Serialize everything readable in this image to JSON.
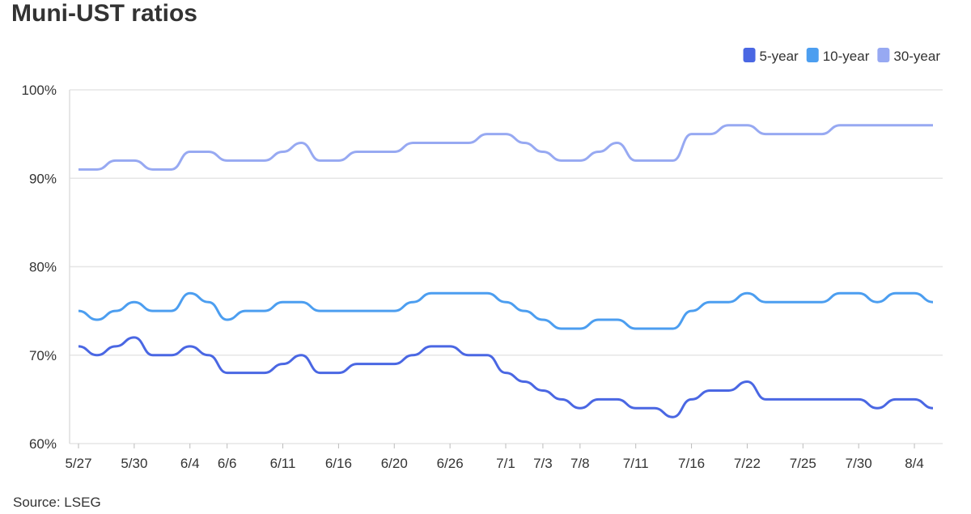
{
  "chart_data": {
    "type": "line",
    "title": "Muni-UST ratios",
    "source": "Source: LSEG",
    "categories": [
      "5/27",
      null,
      null,
      "5/30",
      null,
      null,
      "6/4",
      null,
      "6/6",
      null,
      null,
      "6/11",
      null,
      null,
      "6/16",
      null,
      null,
      "6/20",
      null,
      null,
      "6/26",
      null,
      null,
      "7/1",
      null,
      "7/3",
      null,
      "7/8",
      null,
      null,
      "7/11",
      null,
      null,
      "7/16",
      null,
      null,
      "7/22",
      null,
      null,
      "7/25",
      null,
      null,
      "7/30",
      null,
      null,
      "8/4",
      null
    ],
    "series": [
      {
        "name": "5-year",
        "color": "#4a67e3",
        "values": [
          71,
          70,
          71,
          72,
          70,
          70,
          71,
          70,
          68,
          68,
          68,
          69,
          70,
          68,
          68,
          69,
          69,
          69,
          70,
          71,
          71,
          70,
          70,
          68,
          67,
          66,
          65,
          64,
          65,
          65,
          64,
          64,
          63,
          65,
          66,
          66,
          67,
          65,
          65,
          65,
          65,
          65,
          65,
          64,
          65,
          65,
          64
        ]
      },
      {
        "name": "10-year",
        "color": "#4c9ef0",
        "values": [
          75,
          74,
          75,
          76,
          75,
          75,
          77,
          76,
          74,
          75,
          75,
          76,
          76,
          75,
          75,
          75,
          75,
          75,
          76,
          77,
          77,
          77,
          77,
          76,
          75,
          74,
          73,
          73,
          74,
          74,
          73,
          73,
          73,
          75,
          76,
          76,
          77,
          76,
          76,
          76,
          76,
          77,
          77,
          76,
          77,
          77,
          76
        ]
      },
      {
        "name": "30-year",
        "color": "#97a9f2",
        "values": [
          91,
          91,
          92,
          92,
          91,
          91,
          93,
          93,
          92,
          92,
          92,
          93,
          94,
          92,
          92,
          93,
          93,
          93,
          94,
          94,
          94,
          94,
          95,
          95,
          94,
          93,
          92,
          92,
          93,
          94,
          92,
          92,
          92,
          95,
          95,
          96,
          96,
          95,
          95,
          95,
          95,
          96,
          96,
          96,
          96,
          96,
          96
        ]
      }
    ],
    "ylim": [
      60,
      100
    ],
    "yticks": [
      {
        "value": 60,
        "label": "60%"
      },
      {
        "value": 70,
        "label": "70%"
      },
      {
        "value": 80,
        "label": "80%"
      },
      {
        "value": 90,
        "label": "90%"
      },
      {
        "value": 100,
        "label": "100%"
      }
    ],
    "grid": true,
    "legend": "top-right"
  }
}
